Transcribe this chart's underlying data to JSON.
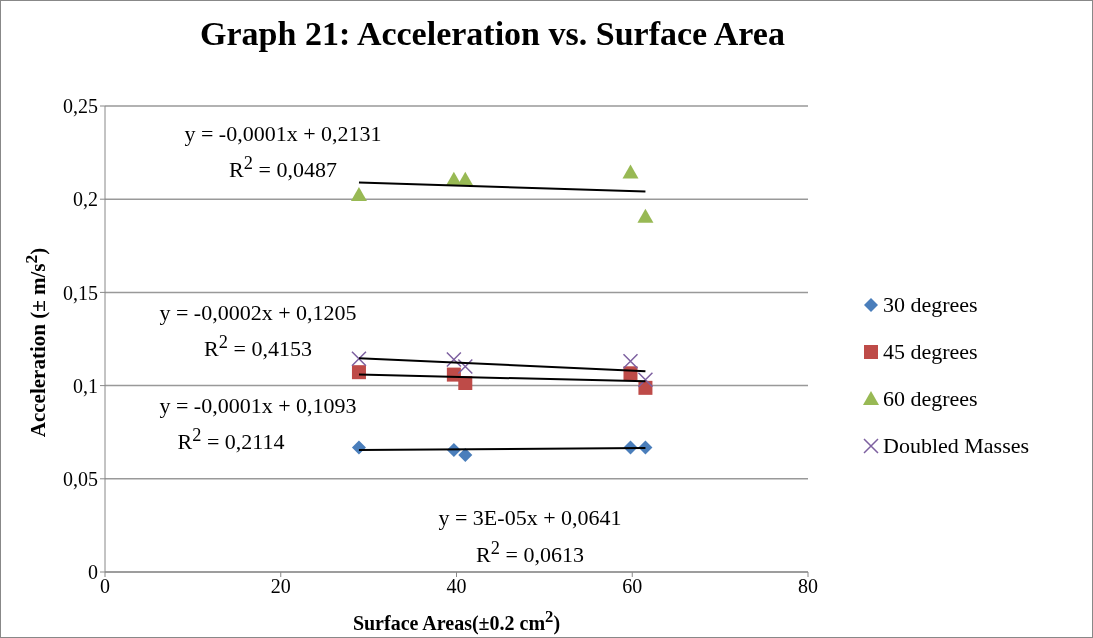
{
  "chart_data": {
    "type": "scatter",
    "title": "Graph 21: Acceleration vs. Surface Area",
    "xlabel": "Surface Areas(±0.2 cm$^{2}$)",
    "ylabel": "Acceleration (± m/s$^{2}$)",
    "xlim": [
      0,
      80
    ],
    "xticks": [
      0,
      20,
      40,
      60,
      80
    ],
    "ylim": [
      0,
      0.25
    ],
    "yticks": [
      {
        "value": 0,
        "label": "0"
      },
      {
        "value": 0.05,
        "label": "0,05"
      },
      {
        "value": 0.1,
        "label": "0,1"
      },
      {
        "value": 0.15,
        "label": "0,15"
      },
      {
        "value": 0.2,
        "label": "0,2"
      },
      {
        "value": 0.25,
        "label": "0,25"
      }
    ],
    "grid": "y",
    "legend": "right",
    "series": [
      {
        "name": "30 degrees",
        "color": "#4a7ebb",
        "marker": "diamond",
        "x": [
          28.9,
          39.7,
          41.0,
          59.8,
          61.5
        ],
        "values": [
          0.0668,
          0.0654,
          0.0628,
          0.0668,
          0.0668
        ]
      },
      {
        "name": "45 degrees",
        "color": "#be4b48",
        "marker": "square",
        "x": [
          28.9,
          39.7,
          41.0,
          59.8,
          61.5
        ],
        "values": [
          0.1072,
          0.1059,
          0.1014,
          0.1066,
          0.0988
        ]
      },
      {
        "name": "60 degrees",
        "color": "#98b954",
        "marker": "triangle",
        "x": [
          28.9,
          39.7,
          41.0,
          59.8,
          61.5
        ],
        "values": [
          0.2023,
          0.2104,
          0.2104,
          0.2143,
          0.1906
        ]
      },
      {
        "name": "Doubled Masses",
        "color": "#7d60a0",
        "marker": "cross",
        "x": [
          28.9,
          39.7,
          41.0,
          59.8,
          61.5
        ],
        "values": [
          0.1144,
          0.114,
          0.1102,
          0.1131,
          0.1031
        ]
      },
      {
        "type": "line",
        "color": "#000000",
        "marker": "none",
        "x": [
          28.9,
          61.5
        ],
        "values": [
          0.2089,
          0.2041
        ]
      },
      {
        "type": "line",
        "color": "#000000",
        "marker": "none",
        "x": [
          28.9,
          61.5
        ],
        "values": [
          0.1147,
          0.1077
        ]
      },
      {
        "type": "line",
        "color": "#000000",
        "marker": "none",
        "x": [
          28.9,
          61.5
        ],
        "values": [
          0.1059,
          0.1023
        ]
      },
      {
        "type": "line",
        "color": "#000000",
        "marker": "none",
        "x": [
          28.9,
          61.5
        ],
        "values": [
          0.0654,
          0.0665
        ]
      }
    ],
    "annotations": [
      "y = -0,0001x + 0,2131",
      "R$^{2}$ = 0,0487",
      "y = -0,0002x + 0,1205",
      "R$^{2}$ = 0,4153",
      "y = -0,0001x + 0,1093",
      "R$^{2}$ = 0,2114",
      "y = 3E-05x + 0,0641",
      "R$^{2}$ = 0,0613"
    ]
  }
}
